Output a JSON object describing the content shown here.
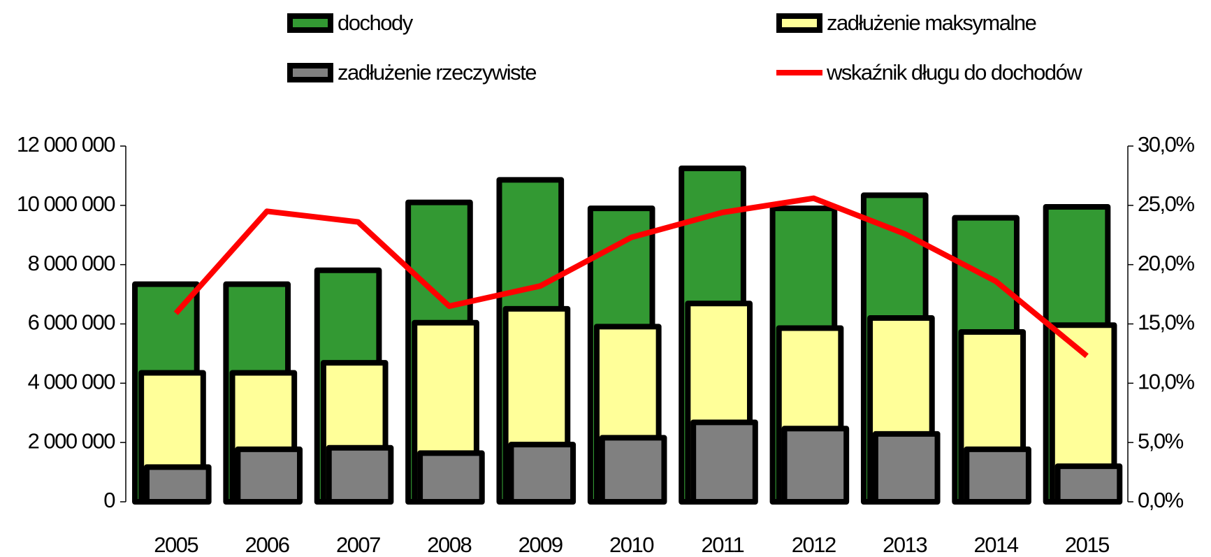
{
  "chart_data": {
    "type": "bar",
    "categories": [
      "2005",
      "2006",
      "2007",
      "2008",
      "2009",
      "2010",
      "2011",
      "2012",
      "2013",
      "2014",
      "2015"
    ],
    "series": [
      {
        "name": "dochody",
        "color": "#339933",
        "values": [
          7340000,
          7340000,
          7810000,
          10100000,
          10860000,
          9900000,
          11250000,
          9900000,
          10340000,
          9580000,
          9950000
        ]
      },
      {
        "name": "zadłużenie maksymalne",
        "color": "#ffff99",
        "values": [
          4350000,
          4350000,
          4690000,
          6040000,
          6510000,
          5910000,
          6690000,
          5860000,
          6200000,
          5730000,
          5960000
        ]
      },
      {
        "name": "zadłużenie rzeczywiste",
        "color": "#808080",
        "values": [
          1170000,
          1770000,
          1820000,
          1640000,
          1930000,
          2160000,
          2680000,
          2470000,
          2290000,
          1770000,
          1200000
        ]
      },
      {
        "name": "wskaźnik długu do dochodów",
        "color": "#ff0000",
        "type": "line",
        "axis": "y2",
        "values": [
          15.9,
          24.5,
          23.6,
          16.5,
          18.2,
          22.3,
          24.4,
          25.6,
          22.6,
          18.6,
          12.3
        ]
      }
    ],
    "ylim": [
      0,
      12000000
    ],
    "yticks": [
      {
        "value": 0,
        "label": "0"
      },
      {
        "value": 2000000,
        "label": "2 000 000"
      },
      {
        "value": 4000000,
        "label": "4 000 000"
      },
      {
        "value": 6000000,
        "label": "6 000 000"
      },
      {
        "value": 8000000,
        "label": "8 000 000"
      },
      {
        "value": 10000000,
        "label": "10 000 000"
      },
      {
        "value": 12000000,
        "label": "12 000 000"
      }
    ],
    "y2lim": [
      0,
      30
    ],
    "y2ticks": [
      {
        "value": 0,
        "label": "0,0%"
      },
      {
        "value": 5,
        "label": "5,0%"
      },
      {
        "value": 10,
        "label": "10,0%"
      },
      {
        "value": 15,
        "label": "15,0%"
      },
      {
        "value": 20,
        "label": "20,0%"
      },
      {
        "value": 25,
        "label": "25,0%"
      },
      {
        "value": 30,
        "label": "30,0%"
      }
    ],
    "legend": "top"
  }
}
